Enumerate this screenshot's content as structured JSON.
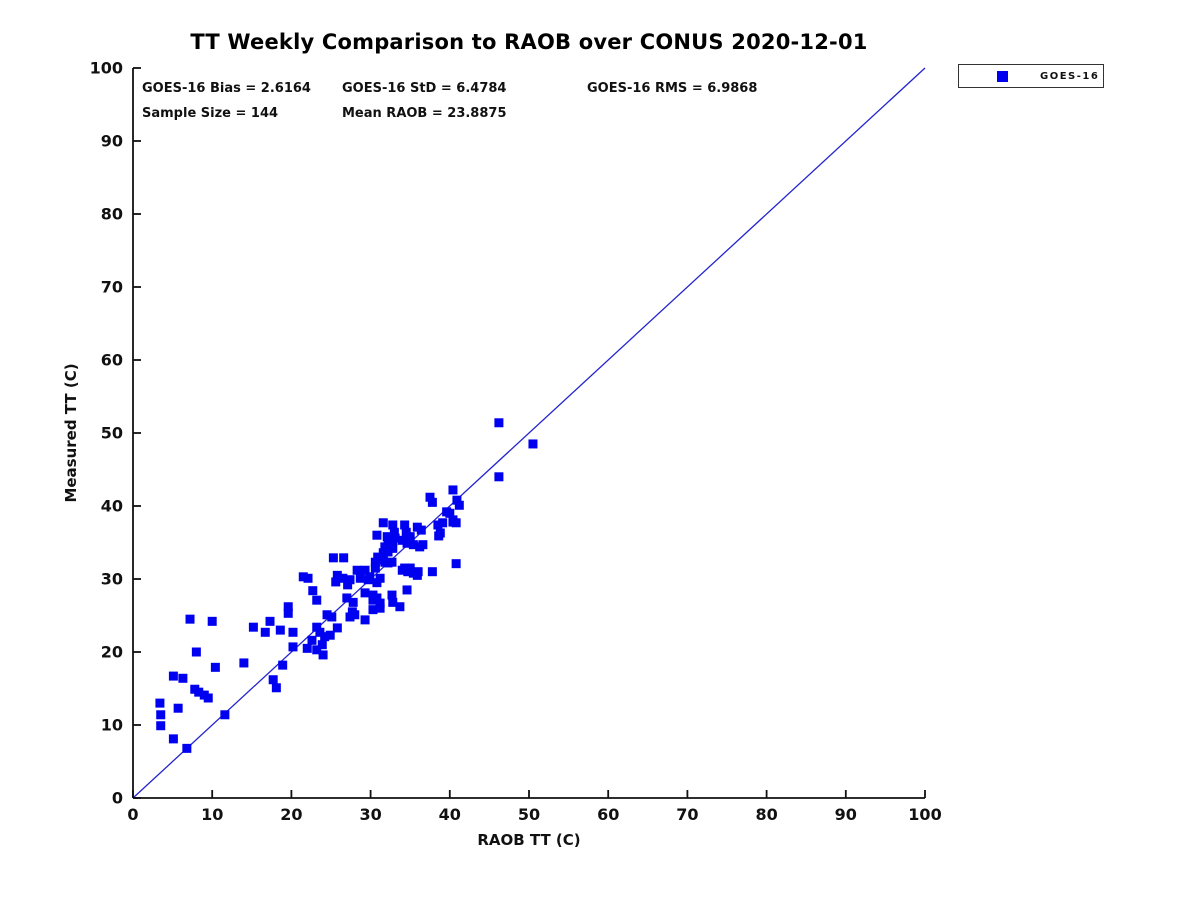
{
  "header": {
    "title": "TT Weekly Comparison to RAOB over CONUS 2020-12-01"
  },
  "colors": {
    "marker": "#0000f0",
    "identity_line": "#2424cf",
    "axis": "#111111",
    "background": "#ffffff"
  },
  "chart_data": {
    "type": "scatter",
    "title": "TT Weekly Comparison to RAOB over CONUS 2020-12-01",
    "xlabel": "RAOB TT (C)",
    "ylabel": "Measured TT (C)",
    "xlim": [
      0,
      100
    ],
    "ylim": [
      0,
      100
    ],
    "x_ticks": [
      0,
      10,
      20,
      30,
      40,
      50,
      60,
      70,
      80,
      90,
      100
    ],
    "y_ticks": [
      0,
      10,
      20,
      30,
      40,
      50,
      60,
      70,
      80,
      90,
      100
    ],
    "grid": false,
    "annotations": {
      "bias": "GOES-16 Bias = 2.6164",
      "std": "GOES-16 StD = 6.4784",
      "rms": "GOES-16 RMS = 6.9868",
      "sample_size": "Sample Size = 144",
      "mean_raob": "Mean RAOB = 23.8875"
    },
    "stats_values": {
      "bias": 2.6164,
      "std": 6.4784,
      "rms": 6.9868,
      "sample_size": 144,
      "mean_raob": 23.8875
    },
    "identity_line": {
      "from": [
        0,
        0
      ],
      "to": [
        100,
        100
      ],
      "color": "#2424cf"
    },
    "legend": {
      "label": "GOES-16",
      "position": "top-right-outside"
    },
    "series": [
      {
        "name": "GOES-16",
        "marker": "filled-square",
        "color": "#0000f0",
        "points": [
          [
            3.4,
            13.0
          ],
          [
            3.5,
            11.4
          ],
          [
            3.5,
            9.9
          ],
          [
            5.1,
            16.7
          ],
          [
            5.1,
            8.1
          ],
          [
            5.7,
            12.3
          ],
          [
            6.3,
            16.4
          ],
          [
            6.8,
            6.8
          ],
          [
            7.2,
            24.5
          ],
          [
            7.8,
            14.9
          ],
          [
            8.0,
            20.0
          ],
          [
            8.3,
            14.5
          ],
          [
            9.0,
            14.1
          ],
          [
            9.5,
            13.7
          ],
          [
            10.0,
            24.2
          ],
          [
            10.4,
            17.9
          ],
          [
            11.6,
            11.4
          ],
          [
            14.0,
            18.5
          ],
          [
            15.2,
            23.4
          ],
          [
            16.7,
            22.7
          ],
          [
            17.3,
            24.2
          ],
          [
            17.7,
            16.2
          ],
          [
            18.1,
            15.1
          ],
          [
            18.6,
            23.0
          ],
          [
            18.9,
            18.2
          ],
          [
            19.6,
            26.2
          ],
          [
            19.6,
            25.3
          ],
          [
            20.2,
            22.7
          ],
          [
            20.2,
            20.7
          ],
          [
            21.5,
            30.3
          ],
          [
            22.0,
            20.5
          ],
          [
            22.1,
            30.1
          ],
          [
            22.6,
            21.6
          ],
          [
            22.7,
            28.4
          ],
          [
            23.2,
            27.1
          ],
          [
            23.2,
            23.4
          ],
          [
            23.2,
            20.3
          ],
          [
            23.6,
            22.7
          ],
          [
            23.9,
            21.0
          ],
          [
            24.0,
            19.6
          ],
          [
            24.2,
            22.1
          ],
          [
            24.5,
            25.1
          ],
          [
            24.9,
            22.3
          ],
          [
            25.1,
            24.8
          ],
          [
            25.3,
            32.9
          ],
          [
            25.6,
            29.6
          ],
          [
            25.8,
            30.5
          ],
          [
            25.8,
            23.3
          ],
          [
            26.5,
            30.1
          ],
          [
            26.6,
            32.9
          ],
          [
            27.0,
            27.4
          ],
          [
            27.1,
            29.2
          ],
          [
            27.4,
            29.9
          ],
          [
            27.4,
            24.8
          ],
          [
            27.7,
            25.5
          ],
          [
            27.8,
            26.8
          ],
          [
            28.0,
            25.1
          ],
          [
            28.3,
            31.2
          ],
          [
            28.7,
            30.1
          ],
          [
            29.3,
            24.4
          ],
          [
            29.3,
            31.2
          ],
          [
            29.3,
            28.1
          ],
          [
            29.7,
            29.9
          ],
          [
            29.9,
            30.3
          ],
          [
            30.3,
            27.1
          ],
          [
            30.3,
            27.8
          ],
          [
            30.3,
            25.8
          ],
          [
            30.6,
            32.3
          ],
          [
            30.6,
            31.5
          ],
          [
            30.8,
            29.5
          ],
          [
            30.8,
            36.0
          ],
          [
            30.8,
            27.4
          ],
          [
            30.9,
            33.0
          ],
          [
            31.2,
            30.1
          ],
          [
            31.2,
            26.7
          ],
          [
            31.2,
            26.0
          ],
          [
            31.6,
            37.7
          ],
          [
            31.6,
            33.6
          ],
          [
            31.6,
            32.6
          ],
          [
            31.8,
            34.4
          ],
          [
            31.8,
            32.3
          ],
          [
            32.1,
            35.8
          ],
          [
            32.2,
            34.7
          ],
          [
            32.2,
            33.7
          ],
          [
            32.2,
            32.2
          ],
          [
            32.7,
            32.3
          ],
          [
            32.7,
            27.8
          ],
          [
            32.8,
            37.4
          ],
          [
            32.8,
            35.1
          ],
          [
            32.8,
            34.2
          ],
          [
            32.8,
            26.8
          ],
          [
            33.0,
            36.4
          ],
          [
            33.1,
            35.6
          ],
          [
            33.7,
            26.2
          ],
          [
            34.0,
            35.3
          ],
          [
            34.0,
            31.2
          ],
          [
            34.3,
            37.4
          ],
          [
            34.3,
            31.5
          ],
          [
            34.5,
            36.4
          ],
          [
            34.6,
            34.9
          ],
          [
            34.6,
            28.5
          ],
          [
            34.7,
            31.0
          ],
          [
            35.0,
            35.8
          ],
          [
            35.0,
            31.5
          ],
          [
            35.4,
            34.7
          ],
          [
            35.4,
            30.8
          ],
          [
            35.9,
            37.1
          ],
          [
            35.9,
            30.5
          ],
          [
            36.0,
            31.0
          ],
          [
            36.2,
            34.4
          ],
          [
            36.4,
            36.7
          ],
          [
            36.6,
            34.7
          ],
          [
            37.5,
            41.2
          ],
          [
            37.8,
            40.5
          ],
          [
            37.8,
            31.0
          ],
          [
            38.5,
            37.4
          ],
          [
            38.6,
            35.9
          ],
          [
            38.8,
            36.3
          ],
          [
            39.1,
            37.7
          ],
          [
            39.6,
            39.2
          ],
          [
            40.0,
            39.0
          ],
          [
            40.4,
            42.2
          ],
          [
            40.4,
            38.1
          ],
          [
            40.4,
            37.8
          ],
          [
            40.8,
            37.7
          ],
          [
            40.8,
            32.1
          ],
          [
            40.9,
            40.8
          ],
          [
            41.2,
            40.1
          ],
          [
            46.2,
            51.4
          ],
          [
            46.2,
            44.0
          ],
          [
            50.5,
            48.5
          ]
        ]
      }
    ]
  }
}
